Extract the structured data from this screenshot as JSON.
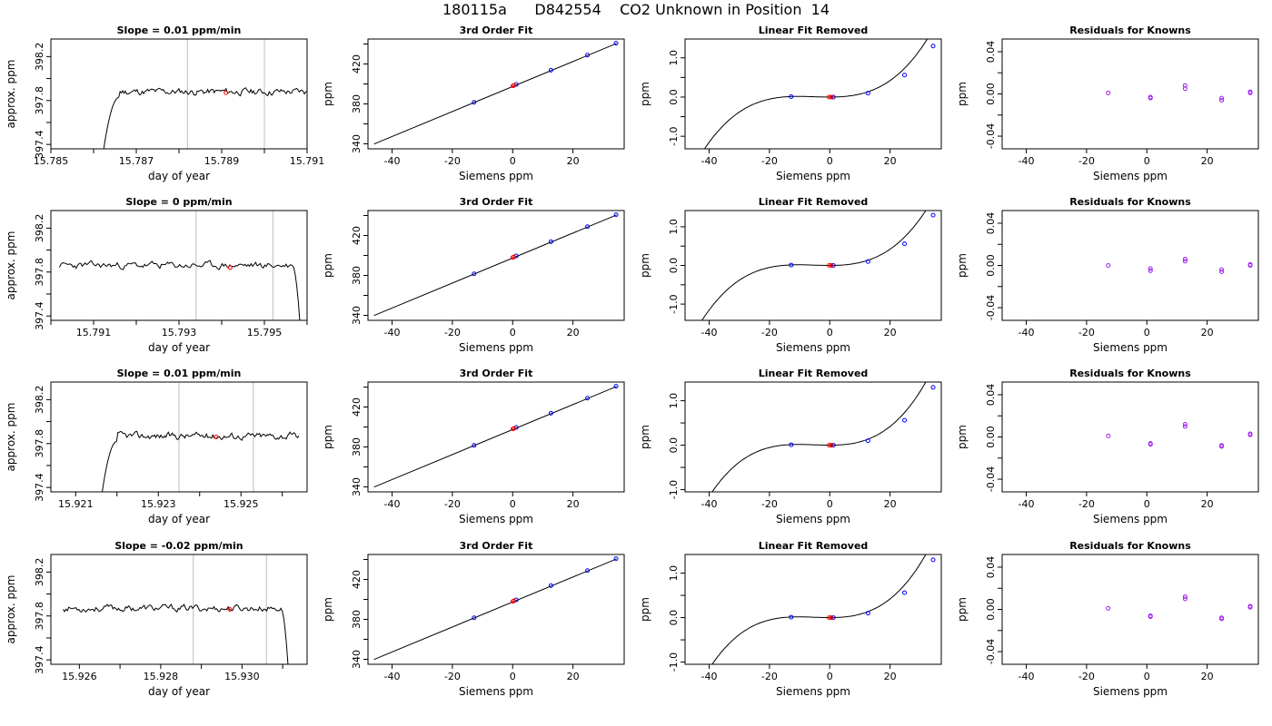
{
  "page_title": "180115a      D842554    CO2 Unknown in Position  14",
  "colors": {
    "trace": "#000000",
    "window_lines": "#c8c8c8",
    "sample_point": "#ff0000",
    "known_points": "#0000ff",
    "residual_points": "#a020f0"
  },
  "chart_data": [
    {
      "type": "line",
      "panel": "r1-trace",
      "title": "Slope =  0.01  ppm/min",
      "xlabel": "day of year",
      "ylabel": "approx. ppm",
      "xlim": [
        15.785,
        15.791
      ],
      "ylim": [
        397.36,
        398.36
      ],
      "x_ticks": [
        15.785,
        15.786,
        15.787,
        15.788,
        15.789,
        15.79,
        15.791
      ],
      "x_tick_labels": [
        "15.785",
        "",
        "15.787",
        "",
        "15.789",
        "",
        "15.791"
      ],
      "y_ticks": [
        397.4,
        397.6,
        397.8,
        398.0,
        398.2
      ],
      "y_tick_labels": [
        "397.4",
        "",
        "397.8",
        "",
        "398.2"
      ],
      "window": [
        15.7882,
        15.79
      ],
      "sample_mark": [
        15.7891,
        397.87
      ],
      "trace": {
        "start": 15.7861,
        "end": 15.791,
        "level": 397.88,
        "dip": "rise",
        "seed": 11
      }
    },
    {
      "type": "line",
      "panel": "r2-trace",
      "title": "Slope =  0  ppm/min",
      "xlabel": "day of year",
      "ylabel": "approx. ppm",
      "xlim": [
        15.79,
        15.796
      ],
      "ylim": [
        397.36,
        398.36
      ],
      "x_ticks": [
        15.79,
        15.791,
        15.792,
        15.793,
        15.794,
        15.795,
        15.796
      ],
      "x_tick_labels": [
        "",
        "15.791",
        "",
        "15.793",
        "",
        "15.795",
        ""
      ],
      "y_ticks": [
        397.4,
        397.6,
        397.8,
        398.0,
        398.2
      ],
      "y_tick_labels": [
        "397.4",
        "",
        "397.8",
        "",
        "398.2"
      ],
      "window": [
        15.7934,
        15.7952
      ],
      "sample_mark": [
        15.7942,
        397.84
      ],
      "trace": {
        "start": 15.7902,
        "end": 15.7959,
        "level": 397.86,
        "dip": "fall",
        "seed": 23
      }
    },
    {
      "type": "line",
      "panel": "r3-trace",
      "title": "Slope =  0.01  ppm/min",
      "xlabel": "day of year",
      "ylabel": "approx. ppm",
      "xlim": [
        15.9204,
        15.9266
      ],
      "ylim": [
        397.36,
        398.36
      ],
      "x_ticks": [
        15.921,
        15.922,
        15.923,
        15.924,
        15.925,
        15.926
      ],
      "x_tick_labels": [
        "15.921",
        "",
        "15.923",
        "",
        "15.925",
        ""
      ],
      "y_ticks": [
        397.4,
        397.6,
        397.8,
        398.0,
        398.2
      ],
      "y_tick_labels": [
        "397.4",
        "",
        "397.8",
        "",
        "398.2"
      ],
      "window": [
        15.9235,
        15.9253
      ],
      "sample_mark": [
        15.9244,
        397.86
      ],
      "trace": {
        "start": 15.9215,
        "end": 15.9264,
        "level": 397.87,
        "dip": "rise",
        "seed": 37
      }
    },
    {
      "type": "line",
      "panel": "r4-trace",
      "title": "Slope =  -0.02  ppm/min",
      "xlabel": "day of year",
      "ylabel": "approx. ppm",
      "xlim": [
        15.9253,
        15.9316
      ],
      "ylim": [
        397.36,
        398.36
      ],
      "x_ticks": [
        15.926,
        15.927,
        15.928,
        15.929,
        15.93,
        15.931
      ],
      "x_tick_labels": [
        "15.926",
        "",
        "15.928",
        "",
        "15.930",
        ""
      ],
      "y_ticks": [
        397.4,
        397.6,
        397.8,
        398.0,
        398.2
      ],
      "y_tick_labels": [
        "397.4",
        "",
        "397.8",
        "",
        "398.2"
      ],
      "window": [
        15.9288,
        15.9306
      ],
      "sample_mark": [
        15.9297,
        397.86
      ],
      "trace": {
        "start": 15.9256,
        "end": 15.9312,
        "level": 397.87,
        "dip": "fall",
        "seed": 53
      }
    },
    {
      "type": "line",
      "panel": "r1-fit",
      "title": "3rd Order Fit",
      "xlabel": "Siemens ppm",
      "ylabel": "ppm",
      "xlim": [
        -48,
        37
      ],
      "ylim": [
        335,
        445
      ],
      "x_ticks": [
        -40,
        -20,
        0,
        20
      ],
      "x_tick_labels": [
        "-40",
        "-20",
        "0",
        "20"
      ],
      "y_ticks": [
        340,
        360,
        380,
        400,
        420,
        440
      ],
      "y_tick_labels": [
        "340",
        "",
        "380",
        "",
        "420",
        ""
      ],
      "line": {
        "x": [
          -46,
          34.5
        ],
        "y": [
          339.8,
          440.6
        ]
      },
      "known_points": {
        "x": [
          -12.8,
          1.2,
          12.7,
          24.8,
          34.3
        ],
        "y": [
          381.6,
          399.5,
          413.8,
          428.9,
          440.8
        ]
      },
      "sample_points": {
        "x": [
          0.1,
          0.4
        ],
        "y": [
          398.1,
          398.5
        ]
      }
    },
    {
      "type": "line",
      "panel": "r2-fit",
      "title": "3rd Order Fit",
      "xlabel": "Siemens ppm",
      "ylabel": "ppm",
      "xlim": [
        -48,
        37
      ],
      "ylim": [
        335,
        445
      ],
      "x_ticks": [
        -40,
        -20,
        0,
        20
      ],
      "x_tick_labels": [
        "-40",
        "-20",
        "0",
        "20"
      ],
      "y_ticks": [
        340,
        360,
        380,
        400,
        420,
        440
      ],
      "y_tick_labels": [
        "340",
        "",
        "380",
        "",
        "420",
        ""
      ],
      "line": {
        "x": [
          -46,
          34.5
        ],
        "y": [
          339.8,
          440.6
        ]
      },
      "known_points": {
        "x": [
          -12.8,
          1.2,
          12.7,
          24.8,
          34.3
        ],
        "y": [
          381.6,
          399.5,
          413.8,
          428.9,
          440.8
        ]
      },
      "sample_points": {
        "x": [
          0.1,
          0.4
        ],
        "y": [
          398.1,
          398.5
        ]
      }
    },
    {
      "type": "line",
      "panel": "r3-fit",
      "title": "3rd Order Fit",
      "xlabel": "Siemens ppm",
      "ylabel": "ppm",
      "xlim": [
        -48,
        37
      ],
      "ylim": [
        335,
        445
      ],
      "x_ticks": [
        -40,
        -20,
        0,
        20
      ],
      "x_tick_labels": [
        "-40",
        "-20",
        "0",
        "20"
      ],
      "y_ticks": [
        340,
        360,
        380,
        400,
        420,
        440
      ],
      "y_tick_labels": [
        "340",
        "",
        "380",
        "",
        "420",
        ""
      ],
      "line": {
        "x": [
          -46,
          34.5
        ],
        "y": [
          339.8,
          440.6
        ]
      },
      "known_points": {
        "x": [
          -12.8,
          1.2,
          12.7,
          24.8,
          34.3
        ],
        "y": [
          381.6,
          399.5,
          413.8,
          428.9,
          440.8
        ]
      },
      "sample_points": {
        "x": [
          0.1,
          0.4
        ],
        "y": [
          398.1,
          398.5
        ]
      }
    },
    {
      "type": "line",
      "panel": "r4-fit",
      "title": "3rd Order Fit",
      "xlabel": "Siemens ppm",
      "ylabel": "ppm",
      "xlim": [
        -48,
        37
      ],
      "ylim": [
        335,
        445
      ],
      "x_ticks": [
        -40,
        -20,
        0,
        20
      ],
      "x_tick_labels": [
        "-40",
        "-20",
        "0",
        "20"
      ],
      "y_ticks": [
        340,
        360,
        380,
        400,
        420,
        440
      ],
      "y_tick_labels": [
        "340",
        "",
        "380",
        "",
        "420",
        ""
      ],
      "line": {
        "x": [
          -46,
          34.5
        ],
        "y": [
          339.8,
          440.6
        ]
      },
      "known_points": {
        "x": [
          -12.8,
          1.2,
          12.7,
          24.8,
          34.3
        ],
        "y": [
          381.6,
          399.5,
          413.8,
          428.9,
          440.8
        ]
      },
      "sample_points": {
        "x": [
          0.1,
          0.4
        ],
        "y": [
          398.1,
          398.5
        ]
      }
    },
    {
      "type": "line",
      "panel": "r1-linrem",
      "title": "Linear Fit Removed",
      "xlabel": "Siemens ppm",
      "ylabel": "ppm",
      "xlim": [
        -48,
        37
      ],
      "ylim": [
        -1.32,
        1.48
      ],
      "x_ticks": [
        -40,
        -20,
        0,
        20
      ],
      "x_tick_labels": [
        "-40",
        "-20",
        "0",
        "20"
      ],
      "y_ticks": [
        -1.0,
        -0.5,
        0.0,
        0.5,
        1.0
      ],
      "y_tick_labels": [
        "-1.0",
        "",
        "0.0",
        "",
        "1.0"
      ],
      "curve": {
        "x_from": -46,
        "x_to": 34.5,
        "coeffs": [
          0.0,
          0.0,
          0.00046,
          2.95e-05
        ]
      },
      "known_points": {
        "x": [
          -12.8,
          1.2,
          12.7,
          24.8,
          34.3
        ],
        "y": [
          0.01,
          0.0,
          0.1,
          0.56,
          1.3
        ]
      },
      "sample_points": {
        "x": [
          -0.2,
          0.5
        ],
        "y": [
          0.0,
          0.0
        ]
      }
    },
    {
      "type": "line",
      "panel": "r2-linrem",
      "title": "Linear Fit Removed",
      "xlabel": "Siemens ppm",
      "ylabel": "ppm",
      "xlim": [
        -48,
        37
      ],
      "ylim": [
        -1.42,
        1.42
      ],
      "x_ticks": [
        -40,
        -20,
        0,
        20
      ],
      "x_tick_labels": [
        "-40",
        "-20",
        "0",
        "20"
      ],
      "y_ticks": [
        -1.0,
        -0.5,
        0.0,
        0.5,
        1.0
      ],
      "y_tick_labels": [
        "-1.0",
        "",
        "0.0",
        "",
        "1.0"
      ],
      "curve": {
        "x_from": -46,
        "x_to": 34.5,
        "coeffs": [
          0.0,
          0.0,
          0.00046,
          2.95e-05
        ]
      },
      "known_points": {
        "x": [
          -12.8,
          1.2,
          12.7,
          24.8,
          34.3
        ],
        "y": [
          0.01,
          0.0,
          0.1,
          0.56,
          1.3
        ]
      },
      "sample_points": {
        "x": [
          -0.2,
          0.5
        ],
        "y": [
          0.0,
          0.0
        ]
      }
    },
    {
      "type": "line",
      "panel": "r3-linrem",
      "title": "Linear Fit Removed",
      "xlabel": "Siemens ppm",
      "ylabel": "ppm",
      "xlim": [
        -48,
        37
      ],
      "ylim": [
        -1.05,
        1.42
      ],
      "x_ticks": [
        -40,
        -20,
        0,
        20
      ],
      "x_tick_labels": [
        "-40",
        "-20",
        "0",
        "20"
      ],
      "y_ticks": [
        -1.0,
        -0.5,
        0.0,
        0.5,
        1.0
      ],
      "y_tick_labels": [
        "-1.0",
        "",
        "0.0",
        "",
        "1.0"
      ],
      "curve": {
        "x_from": -46,
        "x_to": 34.5,
        "coeffs": [
          0.0,
          0.0,
          0.00046,
          2.95e-05
        ]
      },
      "known_points": {
        "x": [
          -12.8,
          1.2,
          12.7,
          24.8,
          34.3
        ],
        "y": [
          0.01,
          0.0,
          0.1,
          0.56,
          1.3
        ]
      },
      "sample_points": {
        "x": [
          -0.2,
          0.5
        ],
        "y": [
          0.0,
          0.0
        ]
      }
    },
    {
      "type": "line",
      "panel": "r4-linrem",
      "title": "Linear Fit Removed",
      "xlabel": "Siemens ppm",
      "ylabel": "ppm",
      "xlim": [
        -48,
        37
      ],
      "ylim": [
        -1.05,
        1.42
      ],
      "x_ticks": [
        -40,
        -20,
        0,
        20
      ],
      "x_tick_labels": [
        "-40",
        "-20",
        "0",
        "20"
      ],
      "y_ticks": [
        -1.0,
        -0.5,
        0.0,
        0.5,
        1.0
      ],
      "y_tick_labels": [
        "-1.0",
        "",
        "0.0",
        "",
        "1.0"
      ],
      "curve": {
        "x_from": -46,
        "x_to": 34.5,
        "coeffs": [
          0.0,
          0.0,
          0.00046,
          2.95e-05
        ]
      },
      "known_points": {
        "x": [
          -12.8,
          1.2,
          12.7,
          24.8,
          34.3
        ],
        "y": [
          0.01,
          0.0,
          0.1,
          0.56,
          1.3
        ]
      },
      "sample_points": {
        "x": [
          -0.2,
          0.5
        ],
        "y": [
          0.0,
          0.0
        ]
      }
    },
    {
      "type": "scatter",
      "panel": "r1-resid",
      "title": "Residuals for Knowns",
      "xlabel": "Siemens ppm",
      "ylabel": "ppm",
      "xlim": [
        -48,
        37
      ],
      "ylim": [
        -0.052,
        0.052
      ],
      "x_ticks": [
        -40,
        -20,
        0,
        20
      ],
      "x_tick_labels": [
        "-40",
        "-20",
        "0",
        "20"
      ],
      "y_ticks": [
        -0.04,
        -0.02,
        0.0,
        0.02,
        0.04
      ],
      "y_tick_labels": [
        "-0.04",
        "",
        "0.00",
        "",
        "0.04"
      ],
      "points": {
        "x": [
          -12.8,
          1.2,
          1.2,
          12.7,
          12.7,
          24.8,
          24.8,
          34.3,
          34.3
        ],
        "y": [
          0.001,
          -0.003,
          -0.004,
          0.008,
          0.005,
          -0.004,
          -0.006,
          0.002,
          0.001
        ]
      }
    },
    {
      "type": "scatter",
      "panel": "r2-resid",
      "title": "Residuals for Knowns",
      "xlabel": "Siemens ppm",
      "ylabel": "ppm",
      "xlim": [
        -48,
        37
      ],
      "ylim": [
        -0.052,
        0.052
      ],
      "x_ticks": [
        -40,
        -20,
        0,
        20
      ],
      "x_tick_labels": [
        "-40",
        "-20",
        "0",
        "20"
      ],
      "y_ticks": [
        -0.04,
        -0.02,
        0.0,
        0.02,
        0.04
      ],
      "y_tick_labels": [
        "-0.04",
        "",
        "0.00",
        "",
        "0.04"
      ],
      "points": {
        "x": [
          -12.8,
          1.2,
          1.2,
          12.7,
          12.7,
          24.8,
          24.8,
          34.3,
          34.3
        ],
        "y": [
          0.0,
          -0.003,
          -0.005,
          0.006,
          0.004,
          -0.004,
          -0.006,
          0.001,
          0.0
        ]
      }
    },
    {
      "type": "scatter",
      "panel": "r3-resid",
      "title": "Residuals for Knowns",
      "xlabel": "Siemens ppm",
      "ylabel": "ppm",
      "xlim": [
        -48,
        37
      ],
      "ylim": [
        -0.052,
        0.052
      ],
      "x_ticks": [
        -40,
        -20,
        0,
        20
      ],
      "x_tick_labels": [
        "-40",
        "-20",
        "0",
        "20"
      ],
      "y_ticks": [
        -0.04,
        -0.02,
        0.0,
        0.02,
        0.04
      ],
      "y_tick_labels": [
        "-0.04",
        "",
        "0.00",
        "",
        "0.04"
      ],
      "points": {
        "x": [
          -12.8,
          1.2,
          1.2,
          12.7,
          12.7,
          24.8,
          24.8,
          34.3,
          34.3
        ],
        "y": [
          0.001,
          -0.006,
          -0.007,
          0.012,
          0.01,
          -0.008,
          -0.009,
          0.003,
          0.002
        ]
      }
    },
    {
      "type": "scatter",
      "panel": "r4-resid",
      "title": "Residuals for Knowns",
      "xlabel": "Siemens ppm",
      "ylabel": "ppm",
      "xlim": [
        -48,
        37
      ],
      "ylim": [
        -0.052,
        0.052
      ],
      "x_ticks": [
        -40,
        -20,
        0,
        20
      ],
      "x_tick_labels": [
        "-40",
        "-20",
        "0",
        "20"
      ],
      "y_ticks": [
        -0.04,
        -0.02,
        0.0,
        0.02,
        0.04
      ],
      "y_tick_labels": [
        "-0.04",
        "",
        "0.00",
        "",
        "0.04"
      ],
      "points": {
        "x": [
          -12.8,
          1.2,
          1.2,
          12.7,
          12.7,
          24.8,
          24.8,
          34.3,
          34.3
        ],
        "y": [
          0.001,
          -0.006,
          -0.007,
          0.012,
          0.01,
          -0.008,
          -0.009,
          0.003,
          0.002
        ]
      }
    }
  ]
}
